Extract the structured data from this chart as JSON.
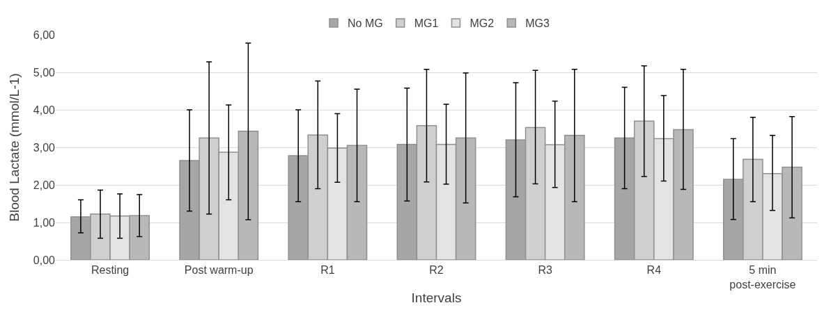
{
  "chart_data": {
    "type": "bar",
    "xlabel": "Intervals",
    "ylabel": "Blood Lactate (mmol/L-1)",
    "categories": [
      "Resting",
      "Post warm-up",
      "R1",
      "R2",
      "R3",
      "R4",
      "5 min post-exercise"
    ],
    "series": [
      {
        "name": "No MG",
        "color": "#a6a6a6",
        "values": [
          1.15,
          2.65,
          2.78,
          3.08,
          3.2,
          3.25,
          2.15
        ],
        "errors": [
          [
            0.72,
            1.6
          ],
          [
            1.3,
            4.0
          ],
          [
            1.55,
            4.0
          ],
          [
            1.57,
            4.58
          ],
          [
            1.68,
            4.72
          ],
          [
            1.9,
            4.6
          ],
          [
            1.08,
            3.23
          ]
        ]
      },
      {
        "name": "MG1",
        "color": "#cfcfcf",
        "values": [
          1.22,
          3.25,
          3.33,
          3.58,
          3.53,
          3.7,
          2.68
        ],
        "errors": [
          [
            0.58,
            1.86
          ],
          [
            1.22,
            5.28
          ],
          [
            1.9,
            4.77
          ],
          [
            2.08,
            5.08
          ],
          [
            2.03,
            5.05
          ],
          [
            2.22,
            5.17
          ],
          [
            1.55,
            3.8
          ]
        ]
      },
      {
        "name": "MG2",
        "color": "#e3e3e3",
        "values": [
          1.17,
          2.87,
          2.98,
          3.08,
          3.07,
          3.23,
          2.3
        ],
        "errors": [
          [
            0.58,
            1.76
          ],
          [
            1.6,
            4.13
          ],
          [
            2.07,
            3.9
          ],
          [
            2.02,
            4.15
          ],
          [
            1.93,
            4.23
          ],
          [
            2.1,
            4.38
          ],
          [
            1.32,
            3.32
          ]
        ]
      },
      {
        "name": "MG3",
        "color": "#b8b8b8",
        "values": [
          1.18,
          3.43,
          3.05,
          3.25,
          3.32,
          3.47,
          2.47
        ],
        "errors": [
          [
            0.62,
            1.74
          ],
          [
            1.07,
            5.78
          ],
          [
            1.55,
            4.55
          ],
          [
            1.52,
            4.98
          ],
          [
            1.55,
            5.08
          ],
          [
            1.88,
            5.08
          ],
          [
            1.12,
            3.82
          ]
        ]
      }
    ],
    "ylim": [
      0,
      6
    ],
    "yticks": [
      {
        "value": 0,
        "label": "0,00"
      },
      {
        "value": 1,
        "label": "1,00"
      },
      {
        "value": 2,
        "label": "2,00"
      },
      {
        "value": 3,
        "label": "3,00"
      },
      {
        "value": 4,
        "label": "4,00"
      },
      {
        "value": 5,
        "label": "5,00"
      },
      {
        "value": 6,
        "label": "6,00"
      }
    ],
    "grid": "y",
    "legend": "top"
  }
}
